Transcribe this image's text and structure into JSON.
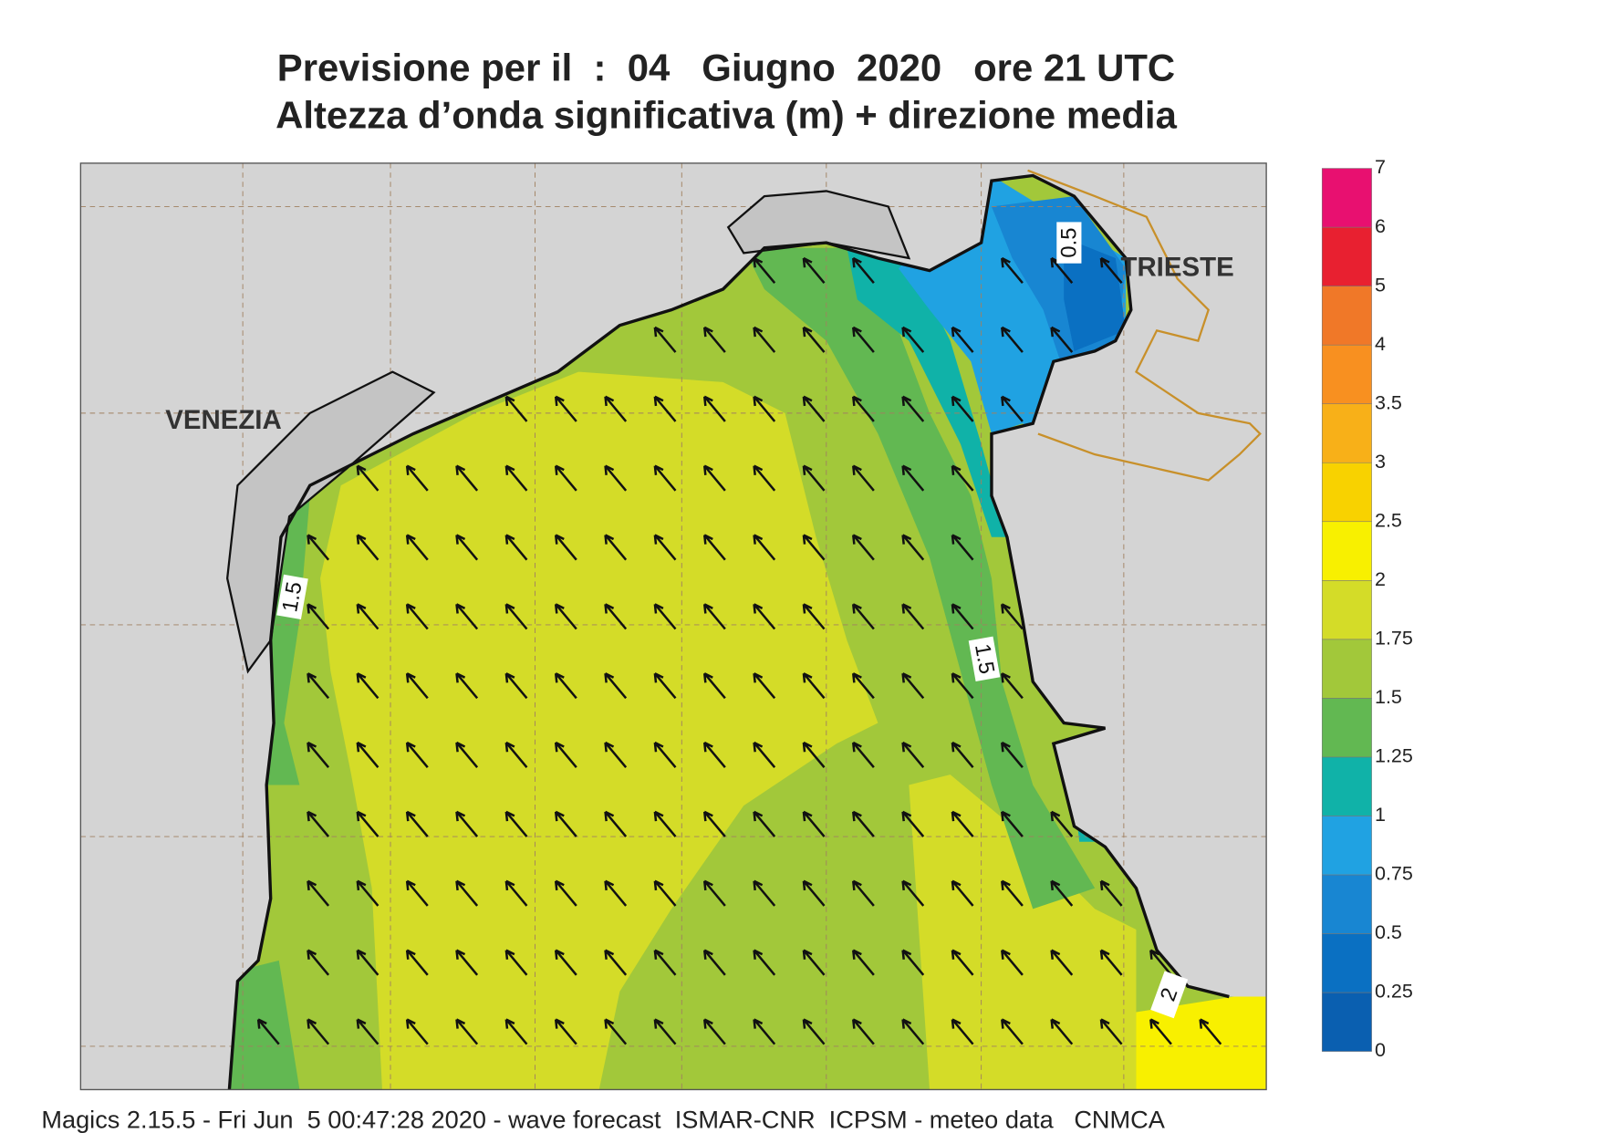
{
  "header": {
    "title": "Previsione per il  :  04   Giugno  2020   ore 21 UTC",
    "subtitle": "Altezza d’onda significativa (m) + direzione media"
  },
  "map": {
    "places": [
      "VENEZIA",
      "TRIESTE"
    ],
    "contour_labels": [
      "0.5",
      "1.5",
      "1.5",
      "2"
    ]
  },
  "legend": {
    "ticks": [
      0,
      0.25,
      0.5,
      0.75,
      1,
      1.25,
      1.5,
      1.75,
      2,
      2.5,
      3,
      3.5,
      4,
      5,
      6,
      7
    ],
    "colors": [
      "#0a5fb0",
      "#0a70c2",
      "#1886d2",
      "#20a2e2",
      "#10b2a8",
      "#62b852",
      "#a2c83a",
      "#d4dc28",
      "#f8f000",
      "#f8d200",
      "#f8b018",
      "#f89020",
      "#f07828",
      "#e82030",
      "#e81070"
    ]
  },
  "footer": "Magics 2.15.5 - Fri Jun  5 00:47:28 2020 - wave forecast  ISMAR-CNR  ICPSM - meteo data   CNMCA"
}
